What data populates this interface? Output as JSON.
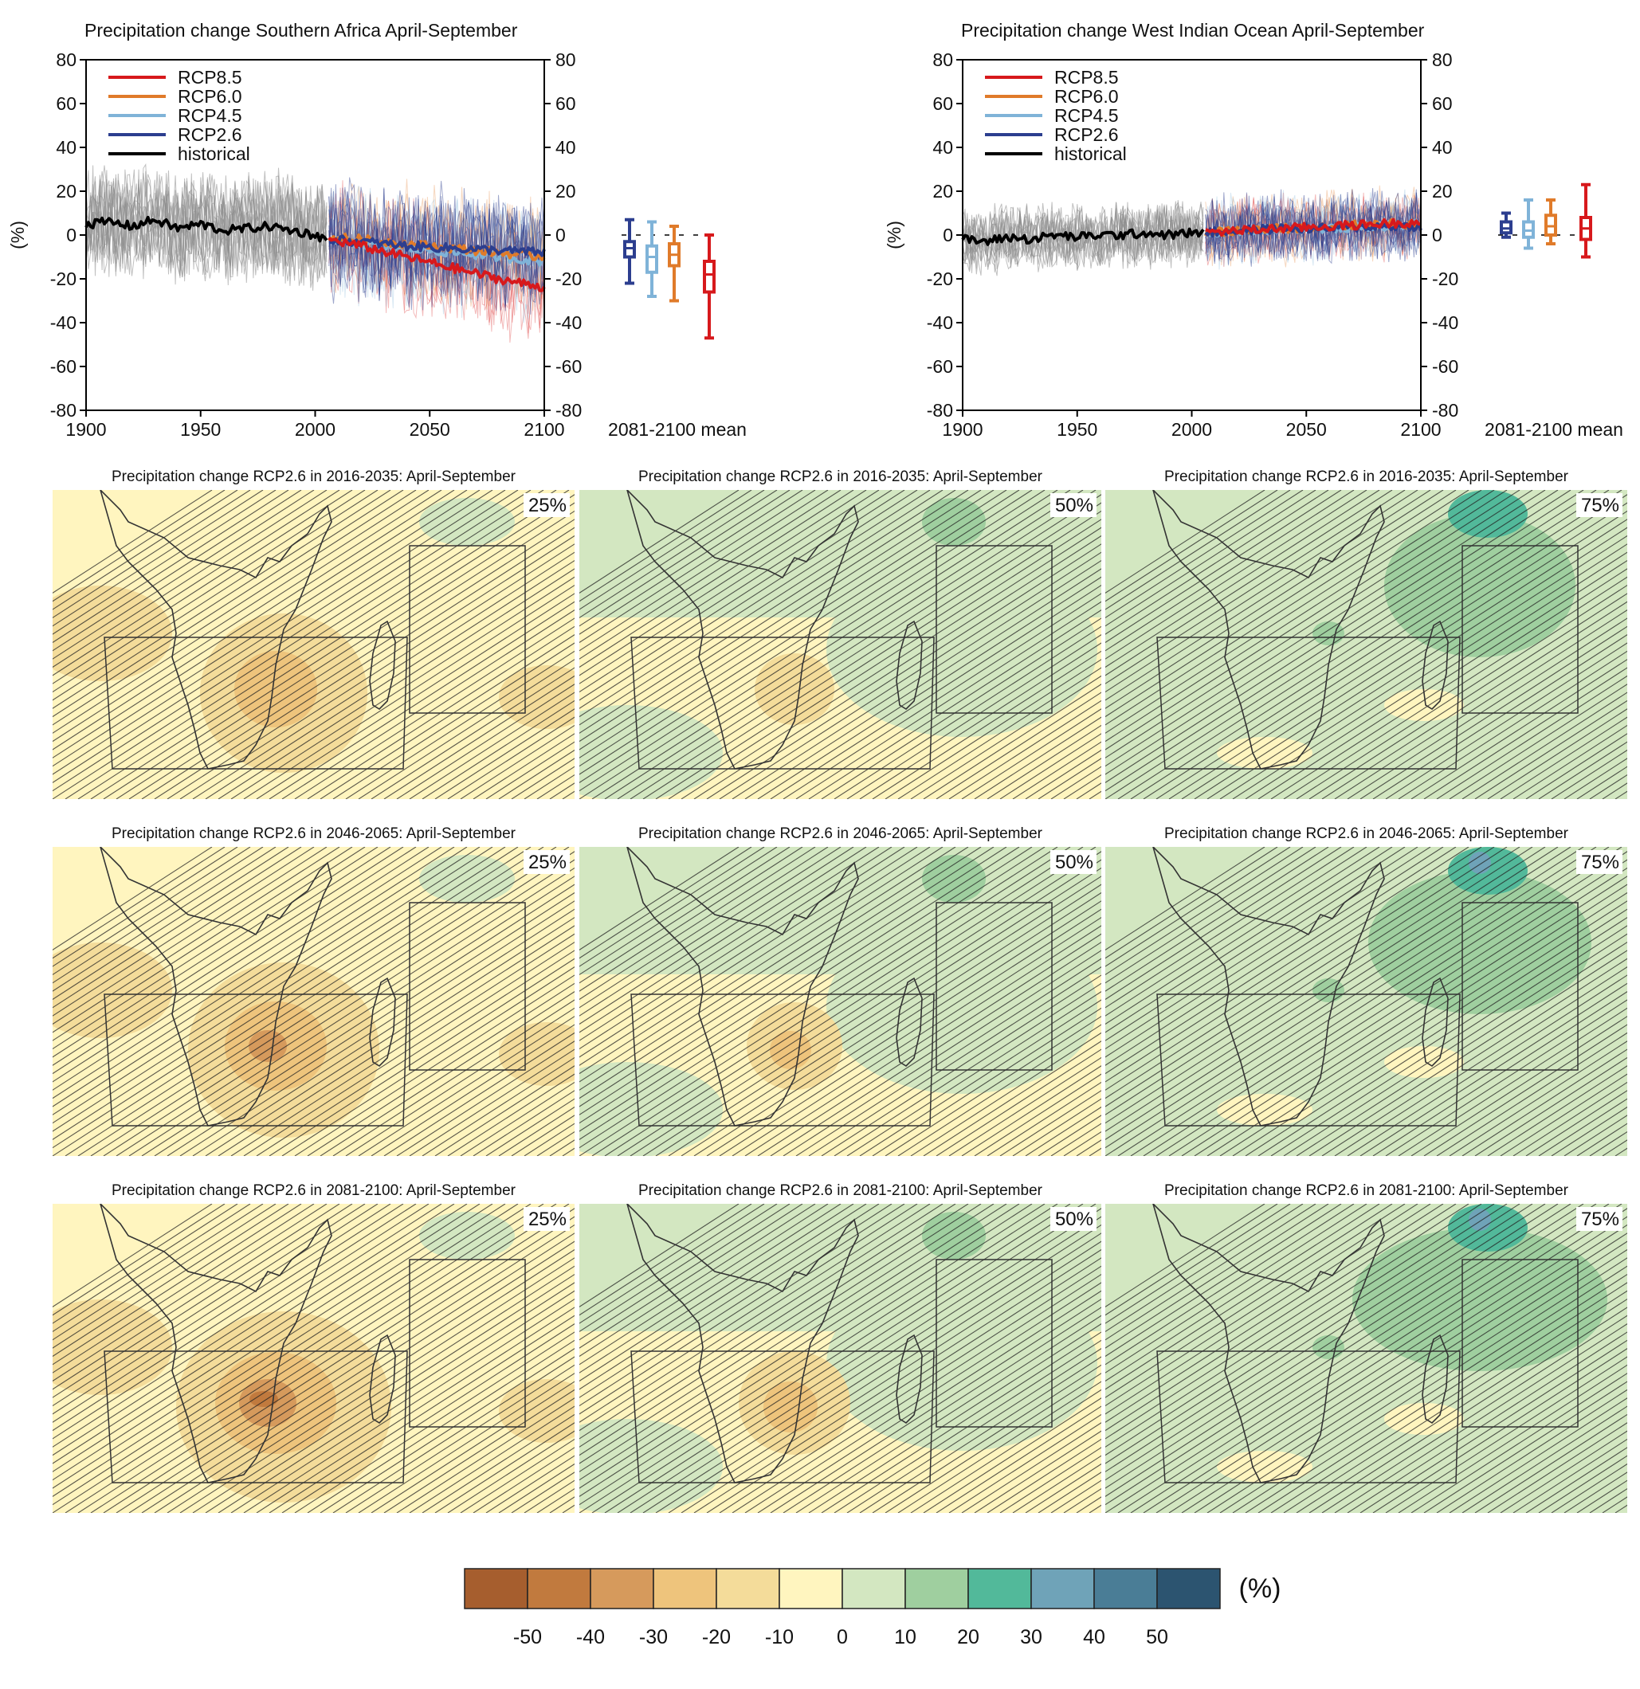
{
  "colors": {
    "rcp85": "#d7191c",
    "rcp60": "#e07b2a",
    "rcp45": "#7fb3d8",
    "rcp26": "#2c3e8f",
    "historical": "#000000",
    "model_spread": "#8c8c8c"
  },
  "chart_data": [
    {
      "type": "line",
      "title": "Precipitation change Southern Africa April-September",
      "ylabel": "(%)",
      "xlim": [
        1900,
        2100
      ],
      "ylim": [
        -80,
        80
      ],
      "x_ticks": [
        1900,
        1950,
        2000,
        2050,
        2100
      ],
      "y_ticks": [
        80,
        60,
        40,
        20,
        0,
        -20,
        -40,
        -60,
        -80
      ],
      "legend_position": "top-left",
      "boxplot_label": "2081-2100 mean",
      "series": [
        {
          "name": "historical",
          "x": [
            1900,
            1910,
            1920,
            1930,
            1940,
            1950,
            1960,
            1970,
            1980,
            1990,
            2000,
            2005
          ],
          "values": [
            5,
            6,
            4,
            7,
            3,
            5,
            2,
            3,
            4,
            2,
            0,
            -2
          ]
        },
        {
          "name": "RCP2.6",
          "x": [
            2006,
            2020,
            2040,
            2060,
            2080,
            2100
          ],
          "values": [
            -2,
            -3,
            -5,
            -6,
            -7,
            -8
          ]
        },
        {
          "name": "RCP4.5",
          "x": [
            2006,
            2020,
            2040,
            2060,
            2080,
            2100
          ],
          "values": [
            -2,
            -4,
            -6,
            -8,
            -10,
            -12
          ]
        },
        {
          "name": "RCP6.0",
          "x": [
            2006,
            2020,
            2040,
            2060,
            2080,
            2100
          ],
          "values": [
            -1,
            -2,
            -4,
            -6,
            -8,
            -10
          ]
        },
        {
          "name": "RCP8.5",
          "x": [
            2006,
            2020,
            2040,
            2060,
            2080,
            2100
          ],
          "values": [
            -2,
            -5,
            -10,
            -15,
            -20,
            -24
          ]
        }
      ],
      "boxplots": [
        {
          "name": "RCP2.6",
          "min": -22,
          "q1": -10,
          "median": -6,
          "q3": -3,
          "max": 7
        },
        {
          "name": "RCP4.5",
          "min": -28,
          "q1": -17,
          "median": -10,
          "q3": -5,
          "max": 6
        },
        {
          "name": "RCP6.0",
          "min": -30,
          "q1": -14,
          "median": -9,
          "q3": -4,
          "max": 4
        },
        {
          "name": "RCP8.5",
          "min": -47,
          "q1": -26,
          "median": -18,
          "q3": -12,
          "max": 0
        }
      ]
    },
    {
      "type": "line",
      "title": "Precipitation change West Indian Ocean April-September",
      "ylabel": "(%)",
      "xlim": [
        1900,
        2100
      ],
      "ylim": [
        -80,
        80
      ],
      "x_ticks": [
        1900,
        1950,
        2000,
        2050,
        2100
      ],
      "y_ticks": [
        80,
        60,
        40,
        20,
        0,
        -20,
        -40,
        -60,
        -80
      ],
      "legend_position": "top-left",
      "boxplot_label": "2081-2100 mean",
      "series": [
        {
          "name": "historical",
          "x": [
            1900,
            1910,
            1920,
            1930,
            1940,
            1950,
            1960,
            1970,
            1980,
            1990,
            2000,
            2005
          ],
          "values": [
            -2,
            -3,
            -1,
            -2,
            0,
            -1,
            0,
            0,
            1,
            0,
            1,
            1
          ]
        },
        {
          "name": "RCP2.6",
          "x": [
            2006,
            2020,
            2040,
            2060,
            2080,
            2100
          ],
          "values": [
            1,
            2,
            3,
            3,
            4,
            4
          ]
        },
        {
          "name": "RCP4.5",
          "x": [
            2006,
            2020,
            2040,
            2060,
            2080,
            2100
          ],
          "values": [
            1,
            2,
            3,
            3,
            4,
            5
          ]
        },
        {
          "name": "RCP6.0",
          "x": [
            2006,
            2020,
            2040,
            2060,
            2080,
            2100
          ],
          "values": [
            1,
            2,
            3,
            4,
            5,
            5
          ]
        },
        {
          "name": "RCP8.5",
          "x": [
            2006,
            2020,
            2040,
            2060,
            2080,
            2100
          ],
          "values": [
            1,
            2,
            3,
            4,
            5,
            6
          ]
        }
      ],
      "boxplots": [
        {
          "name": "RCP2.6",
          "min": -1,
          "q1": 1,
          "median": 3,
          "q3": 6,
          "max": 10
        },
        {
          "name": "RCP4.5",
          "min": -6,
          "q1": -1,
          "median": 2,
          "q3": 6,
          "max": 16
        },
        {
          "name": "RCP6.0",
          "min": -4,
          "q1": 0,
          "median": 4,
          "q3": 9,
          "max": 16
        },
        {
          "name": "RCP8.5",
          "min": -10,
          "q1": -2,
          "median": 3,
          "q3": 8,
          "max": 23
        }
      ]
    }
  ],
  "maps": [
    {
      "title": "Precipitation change RCP2.6 in 2016-2035: April-September",
      "percentile": "25%",
      "tone": "dry",
      "intensity": 1
    },
    {
      "title": "Precipitation change RCP2.6 in 2016-2035: April-September",
      "percentile": "50%",
      "tone": "neutral",
      "intensity": 1
    },
    {
      "title": "Precipitation change RCP2.6 in 2016-2035: April-September",
      "percentile": "75%",
      "tone": "wet",
      "intensity": 1
    },
    {
      "title": "Precipitation change RCP2.6 in 2046-2065: April-September",
      "percentile": "25%",
      "tone": "dry",
      "intensity": 2
    },
    {
      "title": "Precipitation change RCP2.6 in 2046-2065: April-September",
      "percentile": "50%",
      "tone": "neutral",
      "intensity": 2
    },
    {
      "title": "Precipitation change RCP2.6 in 2046-2065: April-September",
      "percentile": "75%",
      "tone": "wet",
      "intensity": 2
    },
    {
      "title": "Precipitation change RCP2.6 in 2081-2100: April-September",
      "percentile": "25%",
      "tone": "dry",
      "intensity": 3
    },
    {
      "title": "Precipitation change RCP2.6 in 2081-2100: April-September",
      "percentile": "50%",
      "tone": "neutral",
      "intensity": 3
    },
    {
      "title": "Precipitation change RCP2.6 in 2081-2100: April-September",
      "percentile": "75%",
      "tone": "wet",
      "intensity": 3
    }
  ],
  "colorbar": {
    "unit": "(%)",
    "tick_labels": [
      "-50",
      "-40",
      "-30",
      "-20",
      "-10",
      "0",
      "10",
      "20",
      "30",
      "40",
      "50"
    ],
    "colors": [
      "#a65e2e",
      "#c17a3e",
      "#d69a5c",
      "#eec47c",
      "#f4dc9a",
      "#fff5bf",
      "#d3e7c1",
      "#9fcf9f",
      "#52b99a",
      "#6fa3b8",
      "#4a7d96",
      "#2c5470"
    ]
  }
}
